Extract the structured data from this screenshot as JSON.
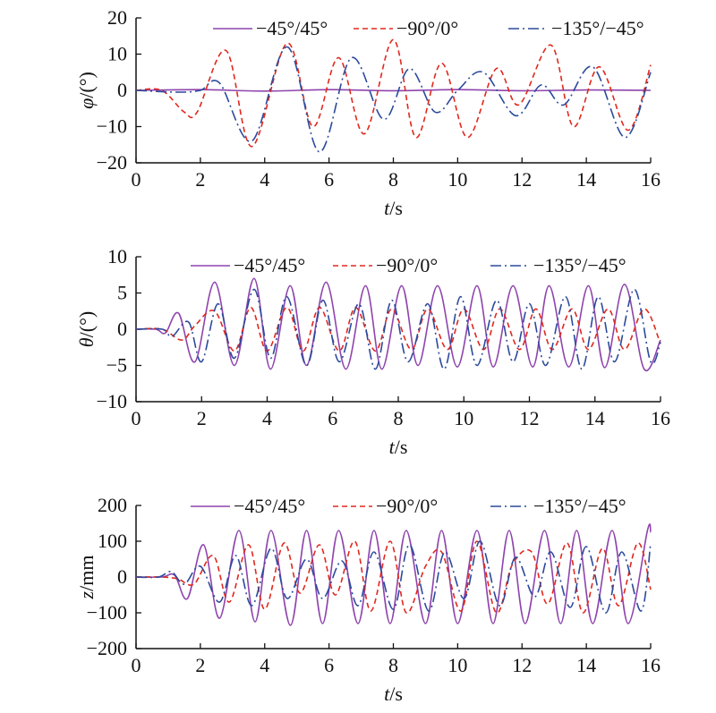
{
  "colors": {
    "s45": "#8e44ad",
    "s90": "#e0281e",
    "s135": "#2b4a9c",
    "axis": "#111111"
  },
  "chart_data": [
    {
      "type": "line",
      "xlabel": {
        "var": "t",
        "unit": "/s"
      },
      "ylabel": {
        "var": "φ",
        "unit": "/(°)"
      },
      "xlim": [
        0,
        16
      ],
      "ylim": [
        -20,
        20
      ],
      "xticks": [
        "0",
        "2",
        "4",
        "6",
        "8",
        "10",
        "12",
        "14",
        "16"
      ],
      "yticks": [
        "20",
        "10",
        "0",
        "−10",
        "−20"
      ],
      "legend": "top",
      "series": [
        {
          "name": "−45°/45°",
          "style": "solid",
          "x": [
            0,
            2,
            4,
            6,
            8,
            10,
            12,
            14,
            16
          ],
          "y": [
            0,
            0.2,
            -0.2,
            0.2,
            -0.1,
            0.2,
            -0.1,
            0.1,
            0
          ]
        },
        {
          "name": "−90°/0°",
          "style": "dashed",
          "x": [
            0,
            0.8,
            1.5,
            1.9,
            2.8,
            3.6,
            4.7,
            5.5,
            6.3,
            7.1,
            8.0,
            8.7,
            9.5,
            10.3,
            11.2,
            11.9,
            12.9,
            13.6,
            14.4,
            15.3,
            16
          ],
          "y": [
            0,
            0,
            -6,
            -6,
            11,
            -15.5,
            13,
            -10,
            9,
            -12,
            14,
            -13,
            7.5,
            -13,
            6,
            -4,
            12.5,
            -10,
            6.5,
            -11,
            7
          ]
        },
        {
          "name": "−135°/−45°",
          "style": "dashdot",
          "x": [
            0,
            1.3,
            2.0,
            2.6,
            3.6,
            4.7,
            5.7,
            6.7,
            7.7,
            8.5,
            9.3,
            10.0,
            10.8,
            11.8,
            12.6,
            13.3,
            14.2,
            15.2,
            16
          ],
          "y": [
            0,
            -0.5,
            0,
            2,
            -14,
            12,
            -17,
            9,
            -8,
            6,
            -6,
            0,
            5,
            -7,
            1.5,
            -4,
            6.5,
            -13,
            5
          ]
        }
      ]
    },
    {
      "type": "line",
      "xlabel": {
        "var": "t",
        "unit": "/s"
      },
      "ylabel": {
        "var": "θ",
        "unit": "/(°)"
      },
      "xlim": [
        0,
        16
      ],
      "ylim": [
        -10,
        10
      ],
      "xticks": [
        "0",
        "2",
        "4",
        "6",
        "8",
        "10",
        "12",
        "14",
        "16"
      ],
      "yticks": [
        "10",
        "5",
        "0",
        "−5",
        "−10"
      ],
      "legend": "top",
      "series": [
        {
          "name": "−45°/45°",
          "style": "solid",
          "x": [
            0,
            0.6,
            0.9,
            1.3,
            1.8,
            2.4,
            3.0,
            3.6,
            4.1,
            4.7,
            5.2,
            5.8,
            6.4,
            7.0,
            7.5,
            8.1,
            8.6,
            9.2,
            9.8,
            10.4,
            10.9,
            11.5,
            12.1,
            12.6,
            13.2,
            13.8,
            14.3,
            14.9,
            15.5,
            16
          ],
          "y": [
            0,
            0,
            -0.5,
            2.2,
            -4.5,
            6.5,
            -5,
            7,
            -5.5,
            6,
            -5,
            6.5,
            -5.5,
            6,
            -5.5,
            6,
            -5,
            6,
            -5.2,
            6,
            -5.2,
            6,
            -5.2,
            6,
            -5.2,
            6,
            -5.3,
            6.2,
            -5.5,
            -1.5
          ]
        },
        {
          "name": "−90°/0°",
          "style": "dashed",
          "x": [
            0,
            0.8,
            1.4,
            1.8,
            2.4,
            3.0,
            3.5,
            4.0,
            4.6,
            5.1,
            5.6,
            6.2,
            6.7,
            7.3,
            7.8,
            8.4,
            8.9,
            9.5,
            10.0,
            10.6,
            11.1,
            11.7,
            12.2,
            12.7,
            13.3,
            13.8,
            14.4,
            14.9,
            15.5,
            16
          ],
          "y": [
            0,
            0,
            -1.5,
            0.5,
            2.5,
            -3,
            3,
            -3,
            3,
            -3,
            3,
            -3,
            3,
            -3,
            2.8,
            -2.8,
            2.8,
            -2.8,
            2.8,
            -2.8,
            2.8,
            -2.8,
            2.8,
            -2.8,
            2.8,
            -2.8,
            2.8,
            -2.8,
            2.8,
            -2
          ]
        },
        {
          "name": "−135°/−45°",
          "style": "dashdot",
          "x": [
            0,
            0.8,
            1.1,
            1.6,
            2.0,
            2.5,
            3.0,
            3.6,
            4.1,
            4.6,
            5.2,
            5.7,
            6.2,
            6.8,
            7.3,
            7.8,
            8.3,
            8.9,
            9.4,
            9.9,
            10.4,
            11.0,
            11.5,
            12.0,
            12.5,
            13.1,
            13.6,
            14.1,
            14.6,
            15.2,
            15.7,
            16
          ],
          "y": [
            0,
            0,
            -1,
            1,
            -4.5,
            3.5,
            -4,
            5.5,
            -4,
            4.5,
            -5,
            4,
            -4.5,
            3.5,
            -5.5,
            4,
            -4.5,
            3.5,
            -5.5,
            4.5,
            -5,
            4,
            -4.5,
            3.5,
            -5,
            4.5,
            -5.5,
            4.5,
            -4.5,
            5.5,
            -4.5,
            -1.8
          ]
        }
      ]
    },
    {
      "type": "line",
      "xlabel": {
        "var": "t",
        "unit": "/s"
      },
      "ylabel": {
        "var": "z",
        "unit": "/mm"
      },
      "xlim": [
        0,
        16
      ],
      "ylim": [
        -200,
        200
      ],
      "xticks": [
        "0",
        "2",
        "4",
        "6",
        "8",
        "10",
        "12",
        "14",
        "16"
      ],
      "yticks": [
        "200",
        "100",
        "0",
        "−100",
        "−200"
      ],
      "legend": "top",
      "series": [
        {
          "name": "−45°/45°",
          "style": "solid",
          "x": [
            0,
            0.8,
            1.2,
            1.6,
            2.1,
            2.6,
            3.2,
            3.7,
            4.2,
            4.8,
            5.3,
            5.8,
            6.3,
            6.9,
            7.4,
            7.9,
            8.4,
            9.0,
            9.5,
            10.0,
            10.6,
            11.1,
            11.6,
            12.1,
            12.7,
            13.2,
            13.7,
            14.2,
            14.8,
            15.3,
            15.9,
            16
          ],
          "y": [
            0,
            0,
            5,
            -60,
            90,
            -115,
            130,
            -125,
            130,
            -135,
            130,
            -130,
            130,
            -130,
            130,
            -130,
            130,
            -130,
            130,
            -130,
            130,
            -130,
            130,
            -130,
            130,
            -130,
            130,
            -130,
            130,
            -130,
            130,
            125
          ]
        },
        {
          "name": "−90°/0°",
          "style": "dashed",
          "x": [
            0,
            0.8,
            1.3,
            1.8,
            2.4,
            2.9,
            3.5,
            4.0,
            4.6,
            5.1,
            5.7,
            6.2,
            6.8,
            7.3,
            7.9,
            8.4,
            9.0,
            9.5,
            10.1,
            10.6,
            11.2,
            11.7,
            12.3,
            12.8,
            13.4,
            13.9,
            14.5,
            15.0,
            15.6,
            16
          ],
          "y": [
            0,
            0,
            -5,
            -20,
            60,
            -70,
            90,
            -90,
            95,
            -45,
            90,
            -50,
            100,
            -95,
            100,
            -100,
            30,
            70,
            -95,
            100,
            -100,
            35,
            70,
            -75,
            95,
            -100,
            80,
            -80,
            95,
            -35
          ]
        },
        {
          "name": "−135°/−45°",
          "style": "dashdot",
          "x": [
            0,
            0.7,
            1.1,
            1.5,
            2.0,
            2.6,
            3.1,
            3.6,
            4.2,
            4.7,
            5.3,
            5.8,
            6.4,
            6.9,
            7.4,
            8.0,
            8.5,
            9.1,
            9.6,
            10.2,
            10.7,
            11.3,
            11.8,
            12.4,
            12.9,
            13.5,
            14.0,
            14.6,
            15.1,
            15.7,
            16
          ],
          "y": [
            0,
            0,
            15,
            -20,
            30,
            -70,
            60,
            -80,
            80,
            -60,
            50,
            -60,
            45,
            -80,
            70,
            -90,
            90,
            -95,
            70,
            -60,
            100,
            -80,
            55,
            -55,
            70,
            -85,
            85,
            -100,
            70,
            -95,
            95
          ]
        }
      ]
    }
  ]
}
